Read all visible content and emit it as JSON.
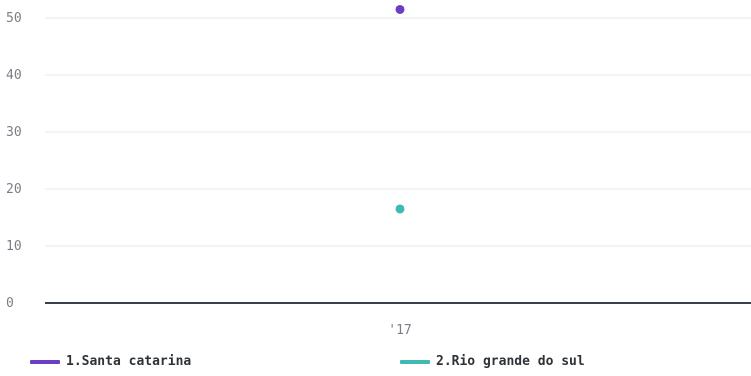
{
  "chart_data": {
    "type": "scatter",
    "x_categories": [
      "'17"
    ],
    "y_ticks": [
      0,
      10,
      20,
      30,
      40,
      50
    ],
    "ylim": [
      0,
      52
    ],
    "grid": true,
    "legend_position": "bottom",
    "series": [
      {
        "name": "1.Santa catarina",
        "color": "#6b3fc4",
        "points": [
          {
            "x": "'17",
            "y": 51.5
          }
        ]
      },
      {
        "name": "2.Rio grande do sul",
        "color": "#3fb9b2",
        "points": [
          {
            "x": "'17",
            "y": 16.5
          }
        ]
      }
    ]
  }
}
